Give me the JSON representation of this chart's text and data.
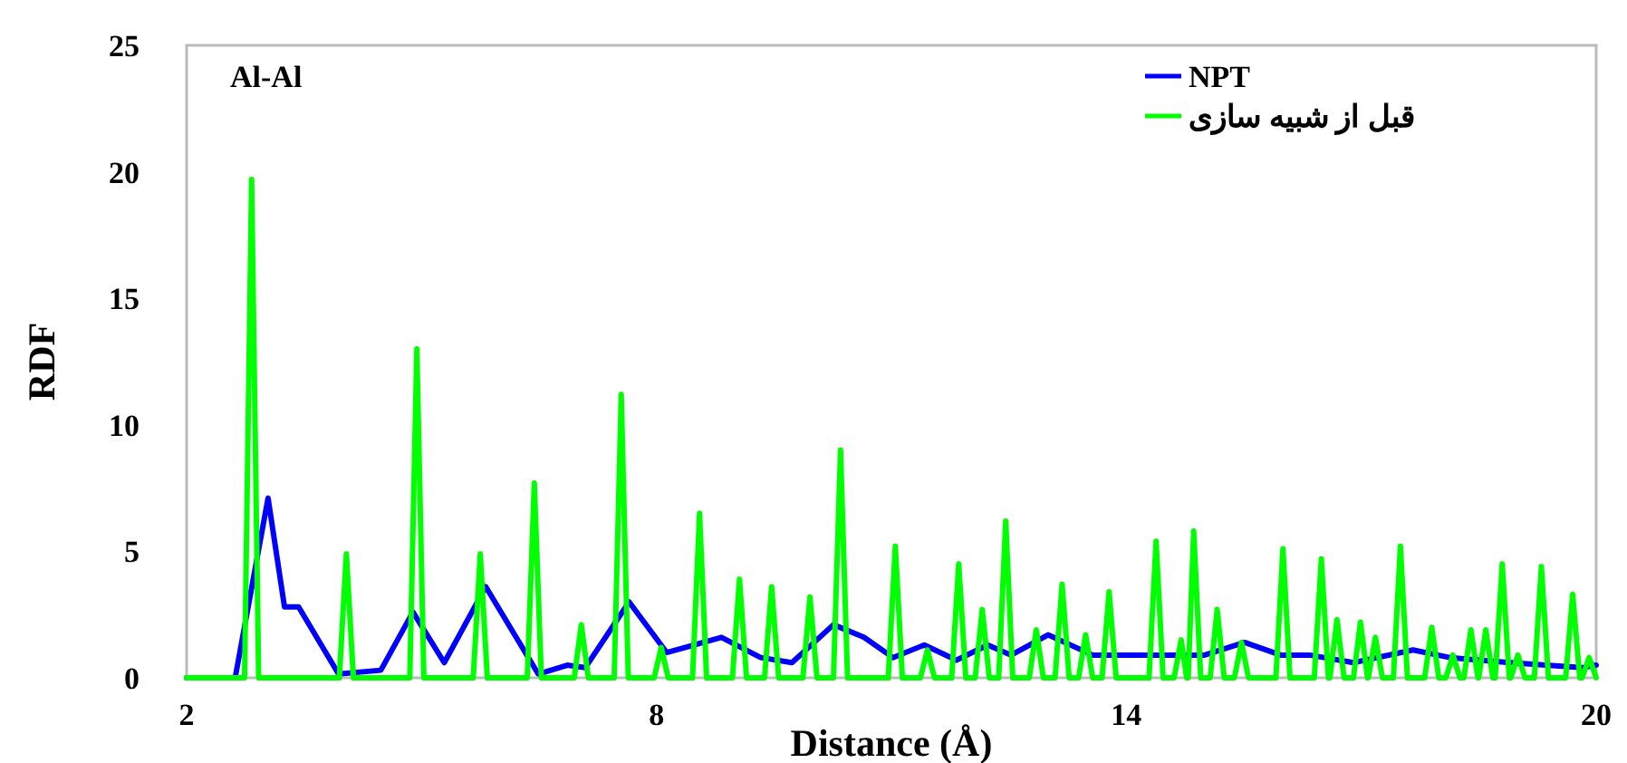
{
  "chart_data": {
    "type": "line",
    "title": "Al-Al",
    "xlabel": "Distance (Å)",
    "ylabel": "RDF",
    "xlim": [
      2,
      20
    ],
    "xticks": [
      2,
      8,
      14,
      20
    ],
    "ylim": [
      0,
      25
    ],
    "yticks": [
      0,
      5,
      10,
      15,
      20,
      25
    ],
    "legend": "top right",
    "series": [
      {
        "name": "NPT",
        "color": "#0000ff",
        "x": [
          2,
          2.62,
          3.04,
          3.25,
          3.43,
          3.94,
          4.48,
          4.89,
          5.29,
          5.82,
          6.49,
          6.86,
          7.09,
          7.65,
          8.13,
          8.83,
          9.33,
          9.73,
          10.26,
          10.65,
          11.02,
          11.42,
          11.83,
          12.23,
          12.53,
          13.0,
          13.57,
          14.35,
          15.0,
          15.51,
          15.97,
          16.34,
          16.9,
          17.66,
          18.13,
          18.9,
          19.82,
          20
        ],
        "values": [
          0,
          0,
          7.1,
          2.8,
          2.8,
          0.15,
          0.3,
          2.6,
          0.6,
          3.6,
          0.15,
          0.5,
          0.4,
          3.0,
          1.0,
          1.6,
          0.8,
          0.6,
          2.1,
          1.6,
          0.8,
          1.3,
          0.7,
          1.3,
          0.9,
          1.7,
          0.9,
          0.9,
          0.9,
          1.4,
          0.9,
          0.9,
          0.6,
          1.1,
          0.8,
          0.6,
          0.4,
          0.5
        ]
      },
      {
        "name": "قبل از شبیه سازی",
        "color": "#00ff00",
        "x": [
          2,
          2.74,
          2.83,
          2.92,
          3.95,
          4.04,
          4.13,
          4.85,
          4.94,
          5.03,
          5.66,
          5.75,
          5.84,
          6.35,
          6.44,
          6.53,
          6.95,
          7.04,
          7.13,
          7.46,
          7.55,
          7.64,
          7.97,
          8.06,
          8.15,
          8.46,
          8.55,
          8.64,
          8.97,
          9.06,
          9.15,
          9.38,
          9.47,
          9.56,
          9.87,
          9.96,
          10.05,
          10.26,
          10.35,
          10.44,
          10.96,
          11.05,
          11.14,
          11.37,
          11.46,
          11.55,
          11.77,
          11.86,
          11.95,
          12.07,
          12.16,
          12.25,
          12.37,
          12.46,
          12.55,
          12.76,
          12.85,
          12.94,
          13.09,
          13.18,
          13.27,
          13.39,
          13.48,
          13.57,
          13.69,
          13.78,
          13.87,
          14.29,
          14.38,
          14.47,
          14.61,
          14.7,
          14.77,
          14.79,
          14.86,
          14.95,
          15.07,
          15.16,
          15.25,
          15.38,
          15.47,
          15.56,
          15.91,
          16.0,
          16.09,
          16.4,
          16.49,
          16.58,
          16.6,
          16.69,
          16.78,
          16.9,
          16.99,
          17.08,
          17.09,
          17.18,
          17.27,
          17.41,
          17.5,
          17.59,
          17.81,
          17.9,
          17.99,
          18.08,
          18.17,
          18.26,
          18.31,
          18.4,
          18.49,
          18.5,
          18.59,
          18.68,
          18.71,
          18.8,
          18.89,
          18.91,
          19.0,
          19.09,
          19.21,
          19.3,
          19.39,
          19.61,
          19.7,
          19.79,
          19.82,
          19.91,
          20
        ],
        "values": [
          0,
          0,
          19.7,
          0,
          0,
          4.9,
          0,
          0,
          13.0,
          0,
          0,
          4.9,
          0,
          0,
          7.7,
          0,
          0,
          2.1,
          0,
          0,
          11.2,
          0,
          0,
          1.2,
          0,
          0,
          6.5,
          0,
          0,
          3.9,
          0,
          0,
          3.6,
          0,
          0,
          3.2,
          0,
          0,
          9.0,
          0,
          0,
          5.2,
          0,
          0,
          1.1,
          0,
          0,
          4.5,
          0,
          0,
          2.7,
          0,
          0,
          6.2,
          0,
          0,
          1.9,
          0,
          0,
          3.7,
          0,
          0,
          1.7,
          0,
          0,
          3.4,
          0,
          0,
          5.4,
          0,
          0,
          1.5,
          0,
          0,
          5.8,
          0,
          0,
          2.7,
          0,
          0,
          1.4,
          0,
          0,
          5.1,
          0,
          0,
          4.7,
          0,
          0,
          2.3,
          0,
          0,
          2.2,
          0,
          0,
          1.6,
          0,
          0,
          5.2,
          0,
          0,
          2.0,
          0,
          0,
          0.9,
          0,
          0,
          1.9,
          0,
          0,
          1.9,
          0,
          0,
          4.5,
          0,
          0,
          0.9,
          0,
          0,
          4.4,
          0,
          0,
          3.3,
          0,
          0,
          0.8,
          0
        ]
      }
    ]
  }
}
